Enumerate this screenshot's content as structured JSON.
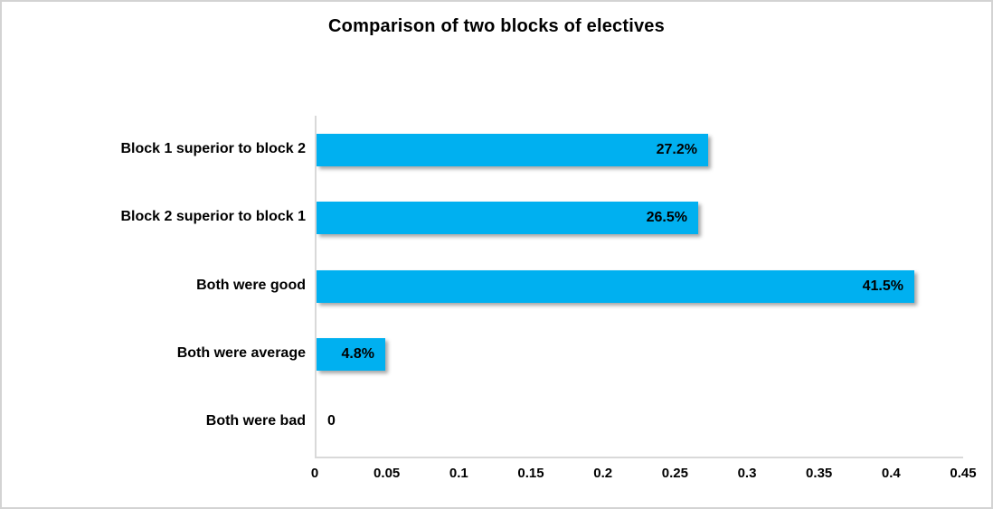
{
  "chart_data": {
    "type": "bar",
    "orientation": "horizontal",
    "title": "Comparison of two blocks of electives",
    "categories": [
      "Block 1 superior to block 2",
      "Block 2 superior to block 1",
      "Both were good",
      "Both were average",
      "Both were bad"
    ],
    "values": [
      0.272,
      0.265,
      0.415,
      0.048,
      0
    ],
    "value_labels": [
      "27.2%",
      "26.5%",
      "41.5%",
      "4.8%",
      "0"
    ],
    "x_ticks": [
      "0",
      "0.05",
      "0.1",
      "0.15",
      "0.2",
      "0.25",
      "0.3",
      "0.35",
      "0.4",
      "0.45"
    ],
    "xlim": [
      0,
      0.45
    ],
    "xlabel": "",
    "ylabel": "",
    "grid": false,
    "legend": false,
    "bar_color": "#00B0F0",
    "axis_line_color": "#D9D9D9",
    "text_color": "#000000"
  }
}
